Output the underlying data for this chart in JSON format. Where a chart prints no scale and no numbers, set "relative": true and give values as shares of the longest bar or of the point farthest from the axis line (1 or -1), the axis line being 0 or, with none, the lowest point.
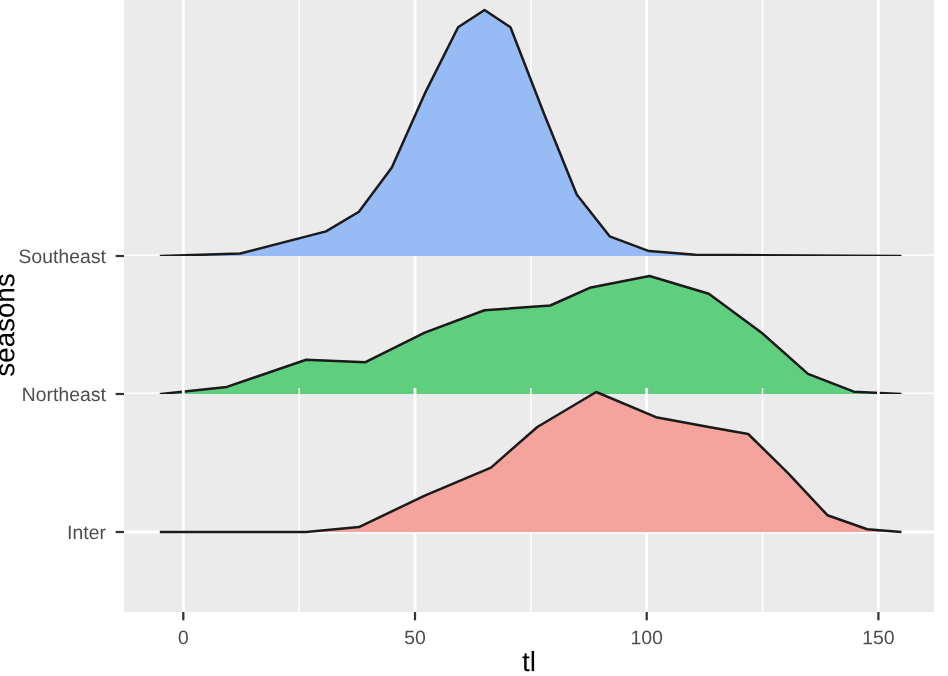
{
  "chart_data": [
    {
      "type": "area",
      "relative": true,
      "xlim": [
        -12.8,
        162
      ],
      "xticks": [
        0,
        50,
        100,
        150
      ],
      "grid": true,
      "tick_labels": "y",
      "series": [
        {
          "name": "Southeast",
          "color": "#96bbf5",
          "x": [
            -4.8,
            12.3,
            30.8,
            37.9,
            45,
            52.1,
            59.3,
            65,
            70.6,
            77.8,
            84.9,
            92,
            100.5,
            110.5,
            154.7
          ],
          "values": [
            0,
            0.01,
            0.1,
            0.18,
            0.36,
            0.66,
            0.93,
            1,
            0.93,
            0.58,
            0.25,
            0.08,
            0.02,
            0.005,
            0
          ]
        }
      ]
    },
    {
      "type": "area",
      "relative": true,
      "ylabel": "seasons",
      "xlim": [
        -12.8,
        162
      ],
      "xticks": [
        0,
        50,
        100,
        150
      ],
      "grid": true,
      "tick_labels": "y",
      "series": [
        {
          "name": "Northeast",
          "color": "#5fce7f",
          "x": [
            -4.8,
            9.4,
            26.5,
            39.3,
            52.1,
            65,
            79.2,
            87.7,
            100.6,
            113.4,
            124.8,
            134.8,
            144.7,
            154.7
          ],
          "values": [
            0,
            0.06,
            0.29,
            0.27,
            0.52,
            0.71,
            0.75,
            0.9,
            1,
            0.85,
            0.52,
            0.17,
            0.02,
            0
          ]
        }
      ]
    },
    {
      "type": "area",
      "relative": true,
      "xlabel": "tl",
      "xlim": [
        -12.8,
        162
      ],
      "xticks": [
        0,
        50,
        100,
        150
      ],
      "grid": true,
      "series": [
        {
          "name": "Inter",
          "color": "#f4a39d",
          "x": [
            -4.8,
            26.5,
            37.9,
            52.1,
            66.4,
            76.4,
            89.1,
            102,
            113.4,
            121.9,
            130.5,
            139,
            147.6,
            154.7
          ],
          "values": [
            0,
            0,
            0.035,
            0.26,
            0.46,
            0.75,
            1,
            0.82,
            0.75,
            0.7,
            0.42,
            0.12,
            0.02,
            0
          ]
        }
      ]
    }
  ]
}
